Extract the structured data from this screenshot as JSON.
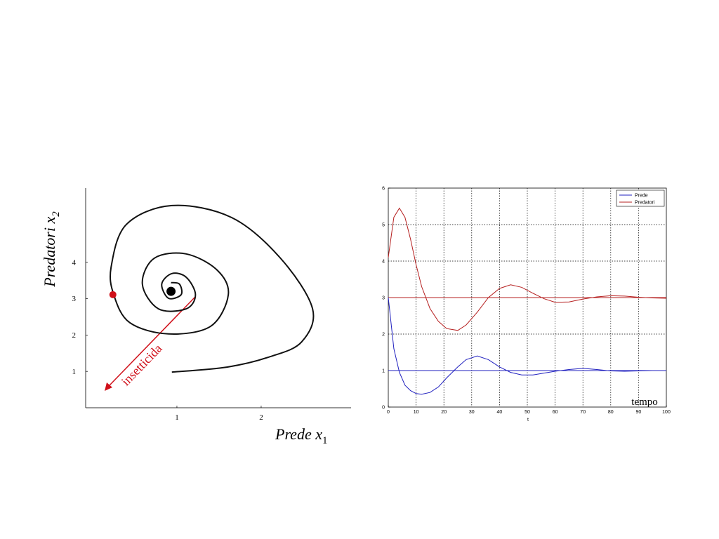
{
  "chart_data": [
    {
      "type": "line",
      "xlabel": "Prede x",
      "xlabel_sub": "1",
      "ylabel": "Predatori x",
      "ylabel_sub": "2",
      "xlim": [
        -0.083,
        3.067
      ],
      "ylim": [
        0,
        6.04
      ],
      "xticks": [
        1,
        2
      ],
      "yticks": [
        1,
        2,
        3,
        4
      ],
      "series": [
        {
          "color": "#111111",
          "x": [
            0.94,
            1.6,
            2.1,
            2.48,
            2.61,
            2.23,
            1.65,
            0.94,
            0.4,
            0.22,
            0.25,
            0.44,
            0.9,
            1.4,
            1.61,
            1.48,
            1.11,
            0.73,
            0.59,
            0.78,
            1.11,
            1.22,
            1.11,
            0.94,
            0.82,
            0.9,
            1.05,
            1.03,
            0.93
          ],
          "values": [
            0.98,
            1.12,
            1.4,
            1.81,
            2.72,
            4.11,
            5.23,
            5.56,
            5.04,
            3.88,
            3.11,
            2.34,
            2.03,
            2.24,
            3.11,
            3.78,
            4.23,
            4.11,
            3.4,
            2.72,
            2.72,
            3.11,
            3.59,
            3.69,
            3.4,
            3.01,
            3.11,
            3.4,
            3.44
          ]
        }
      ],
      "points": [
        {
          "x": 0.24,
          "y": 3.11,
          "color": "#d0101a"
        },
        {
          "x": 0.93,
          "y": 3.2,
          "color": "#000000"
        }
      ],
      "annotation": "insetticida",
      "annotation_color": "#d0101a"
    },
    {
      "type": "line",
      "xlabel": "t",
      "annotation": "tempo",
      "xlim": [
        0,
        100
      ],
      "ylim": [
        0,
        6
      ],
      "xticks": [
        0,
        10,
        20,
        30,
        40,
        50,
        60,
        70,
        80,
        90,
        100
      ],
      "yticks": [
        0,
        1,
        2,
        3,
        4,
        5,
        6
      ],
      "grid": true,
      "legend": "top-right",
      "x": [
        0,
        2,
        4,
        6,
        8,
        10,
        12,
        15,
        18,
        21,
        25,
        28,
        32,
        36,
        40,
        44,
        48,
        52,
        56,
        60,
        65,
        70,
        75,
        80,
        85,
        90,
        95,
        100
      ],
      "series": [
        {
          "name": "Prede",
          "color": "#1f1fbf",
          "values": [
            3,
            1.6,
            0.95,
            0.6,
            0.45,
            0.37,
            0.35,
            0.4,
            0.55,
            0.8,
            1.1,
            1.3,
            1.4,
            1.3,
            1.1,
            0.95,
            0.88,
            0.88,
            0.93,
            0.98,
            1.03,
            1.06,
            1.03,
            0.99,
            0.98,
            0.99,
            1.0,
            1.0
          ]
        },
        {
          "name": "Predatori",
          "color": "#b51f1f",
          "values": [
            4.1,
            5.2,
            5.45,
            5.2,
            4.6,
            3.9,
            3.3,
            2.7,
            2.35,
            2.15,
            2.1,
            2.25,
            2.6,
            3.0,
            3.25,
            3.35,
            3.28,
            3.12,
            2.97,
            2.87,
            2.88,
            2.96,
            3.02,
            3.05,
            3.04,
            3.01,
            2.99,
            2.98
          ]
        }
      ],
      "hlines": [
        {
          "value": 1,
          "color": "#1f1fbf"
        },
        {
          "value": 3,
          "color": "#b51f1f"
        }
      ]
    }
  ]
}
